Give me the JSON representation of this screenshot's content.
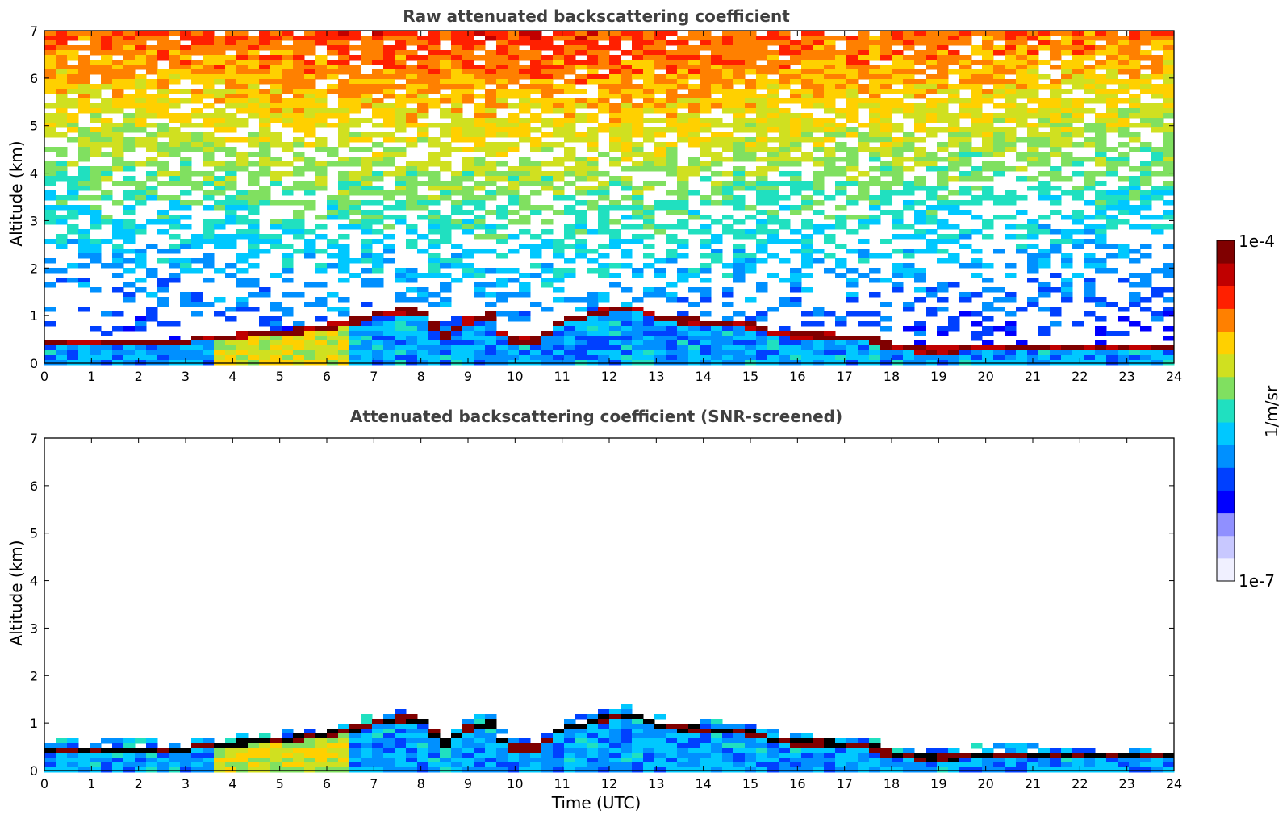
{
  "chart_data": [
    {
      "type": "heatmap",
      "title": "Raw attenuated backscattering coefficient",
      "xlabel": "",
      "ylabel": "Altitude (km)",
      "xlim": [
        0,
        24
      ],
      "ylim": [
        0,
        7
      ],
      "x_ticks": [
        "0",
        "1",
        "2",
        "3",
        "4",
        "5",
        "6",
        "7",
        "8",
        "9",
        "10",
        "11",
        "12",
        "13",
        "14",
        "15",
        "16",
        "17",
        "18",
        "19",
        "20",
        "21",
        "22",
        "23",
        "24"
      ],
      "y_ticks": [
        "0",
        "1",
        "2",
        "3",
        "4",
        "5",
        "6",
        "7"
      ],
      "background": "noisy",
      "layer_top_km": [
        [
          0,
          0.5
        ],
        [
          1,
          0.48
        ],
        [
          2,
          0.48
        ],
        [
          3,
          0.5
        ],
        [
          3.5,
          0.6
        ],
        [
          4,
          0.58
        ],
        [
          4.5,
          0.68
        ],
        [
          5,
          0.68
        ],
        [
          5.5,
          0.75
        ],
        [
          6,
          0.8
        ],
        [
          6.5,
          0.9
        ],
        [
          7,
          1.05
        ],
        [
          7.5,
          1.15
        ],
        [
          8,
          1.1
        ],
        [
          8.5,
          0.6
        ],
        [
          9,
          0.95
        ],
        [
          9.5,
          1.05
        ],
        [
          9.8,
          0.55
        ],
        [
          10,
          0.5
        ],
        [
          10.5,
          0.55
        ],
        [
          11,
          0.95
        ],
        [
          11.5,
          1.0
        ],
        [
          12,
          1.2
        ],
        [
          12.5,
          1.2
        ],
        [
          13,
          1.0
        ],
        [
          13.5,
          0.95
        ],
        [
          14,
          0.9
        ],
        [
          14.5,
          0.88
        ],
        [
          15,
          0.85
        ],
        [
          15.5,
          0.7
        ],
        [
          16,
          0.62
        ],
        [
          16.5,
          0.62
        ],
        [
          17,
          0.6
        ],
        [
          17.5,
          0.6
        ],
        [
          18,
          0.38
        ],
        [
          18.5,
          0.33
        ],
        [
          19,
          0.32
        ],
        [
          19.5,
          0.35
        ],
        [
          20,
          0.4
        ],
        [
          20.5,
          0.38
        ],
        [
          21,
          0.38
        ],
        [
          21.5,
          0.37
        ],
        [
          22,
          0.36
        ],
        [
          22.5,
          0.36
        ],
        [
          23,
          0.36
        ],
        [
          23.5,
          0.36
        ],
        [
          23.9,
          0.36
        ]
      ]
    },
    {
      "type": "heatmap",
      "title": "Attenuated backscattering coefficient (SNR-screened)",
      "xlabel": "Time (UTC)",
      "ylabel": "Altitude (km)",
      "xlim": [
        0,
        24
      ],
      "ylim": [
        0,
        7
      ],
      "x_ticks": [
        "0",
        "1",
        "2",
        "3",
        "4",
        "5",
        "6",
        "7",
        "8",
        "9",
        "10",
        "11",
        "12",
        "13",
        "14",
        "15",
        "16",
        "17",
        "18",
        "19",
        "20",
        "21",
        "22",
        "23",
        "24"
      ],
      "y_ticks": [
        "0",
        "1",
        "2",
        "3",
        "4",
        "5",
        "6",
        "7"
      ],
      "background": "screened",
      "layer_top_km": [
        [
          0,
          0.5
        ],
        [
          1,
          0.48
        ],
        [
          2,
          0.48
        ],
        [
          3,
          0.5
        ],
        [
          3.5,
          0.6
        ],
        [
          4,
          0.58
        ],
        [
          4.5,
          0.68
        ],
        [
          5,
          0.68
        ],
        [
          5.5,
          0.75
        ],
        [
          6,
          0.8
        ],
        [
          6.5,
          0.9
        ],
        [
          7,
          1.05
        ],
        [
          7.5,
          1.15
        ],
        [
          8,
          1.1
        ],
        [
          8.5,
          0.6
        ],
        [
          9,
          0.95
        ],
        [
          9.5,
          1.05
        ],
        [
          9.8,
          0.55
        ],
        [
          10,
          0.5
        ],
        [
          10.5,
          0.55
        ],
        [
          11,
          0.95
        ],
        [
          11.5,
          1.0
        ],
        [
          12,
          1.2
        ],
        [
          12.5,
          1.2
        ],
        [
          13,
          1.0
        ],
        [
          13.5,
          0.95
        ],
        [
          14,
          0.9
        ],
        [
          14.5,
          0.88
        ],
        [
          15,
          0.85
        ],
        [
          15.5,
          0.7
        ],
        [
          16,
          0.62
        ],
        [
          16.5,
          0.62
        ],
        [
          17,
          0.6
        ],
        [
          17.5,
          0.6
        ],
        [
          18,
          0.38
        ],
        [
          18.5,
          0.33
        ],
        [
          19,
          0.32
        ],
        [
          19.5,
          0.35
        ],
        [
          20,
          0.4
        ],
        [
          20.5,
          0.38
        ],
        [
          21,
          0.38
        ],
        [
          21.5,
          0.37
        ],
        [
          22,
          0.36
        ],
        [
          22.5,
          0.36
        ],
        [
          23,
          0.36
        ],
        [
          23.5,
          0.36
        ],
        [
          23.9,
          0.36
        ]
      ]
    }
  ],
  "colorbar": {
    "max_label": "1e-4",
    "min_label": "1e-7",
    "unit_label": "1/m/sr",
    "colors": [
      "#f0f0ff",
      "#c8c8ff",
      "#9090ff",
      "#0000ff",
      "#0040ff",
      "#0090ff",
      "#00c8ff",
      "#20e0c0",
      "#80e060",
      "#d0e020",
      "#ffd000",
      "#ff8000",
      "#ff2000",
      "#c00000",
      "#800000"
    ]
  }
}
